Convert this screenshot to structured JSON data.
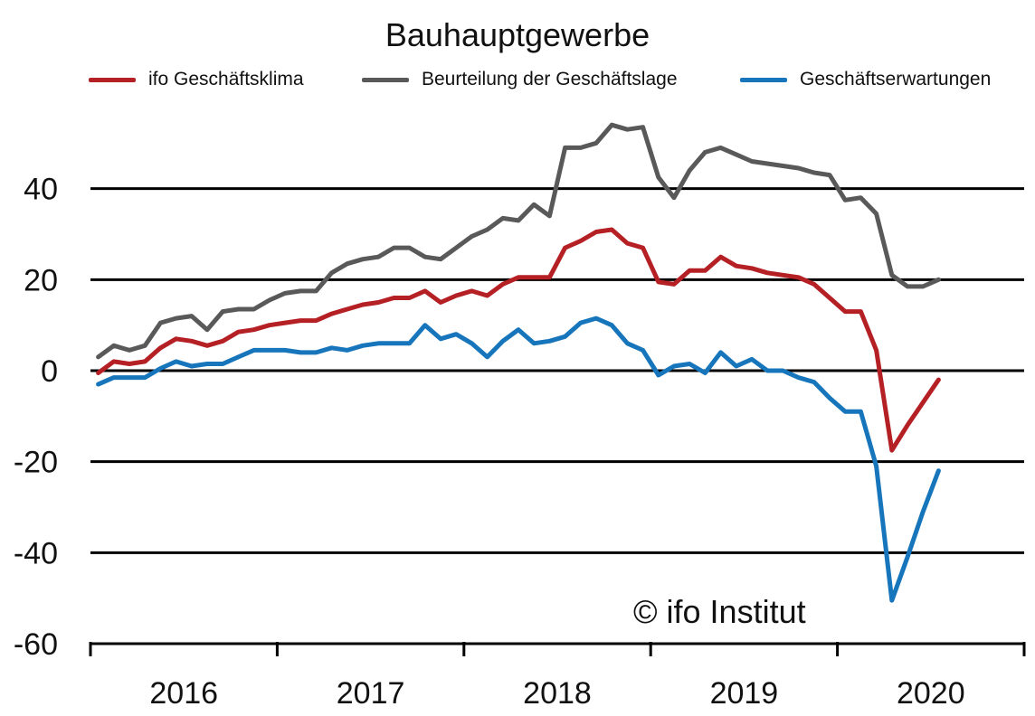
{
  "chart_data": {
    "type": "line",
    "title": "Bauhauptgewerbe",
    "xlabel": "",
    "ylabel": "",
    "ylim": [
      -60,
      60
    ],
    "yticks": [
      -60,
      -40,
      -20,
      0,
      20,
      40
    ],
    "ytick_labels": [
      "-60",
      "-40",
      "-20",
      "0",
      "20",
      "40"
    ],
    "year_labels": [
      "2016",
      "2017",
      "2018",
      "2019",
      "2020"
    ],
    "x_start": "2016-01",
    "x_end": "2020-06",
    "grid": true,
    "legend_position": "top",
    "series": [
      {
        "name": "ifo Geschäftsklima",
        "color": "#b52025",
        "values": [
          -0.5,
          2,
          1.5,
          2,
          5,
          7,
          6.5,
          5.5,
          6.5,
          8.5,
          9,
          10,
          10.5,
          11,
          11,
          12.5,
          13.5,
          14.5,
          15,
          16,
          16,
          17.5,
          15,
          16.5,
          17.5,
          16.5,
          19,
          20.5,
          20.5,
          20.5,
          27,
          28.5,
          30.5,
          31,
          28,
          27,
          19.5,
          19,
          22,
          22,
          25,
          23,
          22.5,
          21.5,
          21,
          20.5,
          19,
          16,
          13,
          13,
          4.5,
          -17.5,
          -12,
          -7,
          -2
        ]
      },
      {
        "name": "Beurteilung der Geschäftslage",
        "color": "#595959",
        "values": [
          3,
          5.5,
          4.5,
          5.5,
          10.5,
          11.5,
          12,
          9,
          13,
          13.5,
          13.5,
          15.5,
          17,
          17.5,
          17.5,
          21.5,
          23.5,
          24.5,
          25,
          27,
          27,
          25,
          24.5,
          27,
          29.5,
          31,
          33.5,
          33,
          36.5,
          34,
          49,
          49,
          50,
          54,
          53,
          53.5,
          42.5,
          38,
          44,
          48,
          49,
          47.5,
          46,
          45.5,
          45,
          44.5,
          43.5,
          43,
          37.5,
          38,
          34.5,
          21,
          18.5,
          18.5,
          20
        ]
      },
      {
        "name": "Geschäftserwartungen",
        "color": "#1775bb",
        "values": [
          -3,
          -1.5,
          -1.5,
          -1.5,
          0.5,
          2,
          1,
          1.5,
          1.5,
          3,
          4.5,
          4.5,
          4.5,
          4,
          4,
          5,
          4.5,
          5.5,
          6,
          6,
          6,
          10,
          7,
          8,
          6,
          3,
          6.5,
          9,
          6,
          6.5,
          7.5,
          10.5,
          11.5,
          10,
          6,
          4.5,
          -1,
          1,
          1.5,
          -0.5,
          4,
          1,
          2.5,
          0,
          0,
          -1.5,
          -2.5,
          -6,
          -9,
          -9,
          -21,
          -50.5,
          -41,
          -31,
          -22
        ]
      }
    ]
  },
  "watermark": "© ifo Institut"
}
